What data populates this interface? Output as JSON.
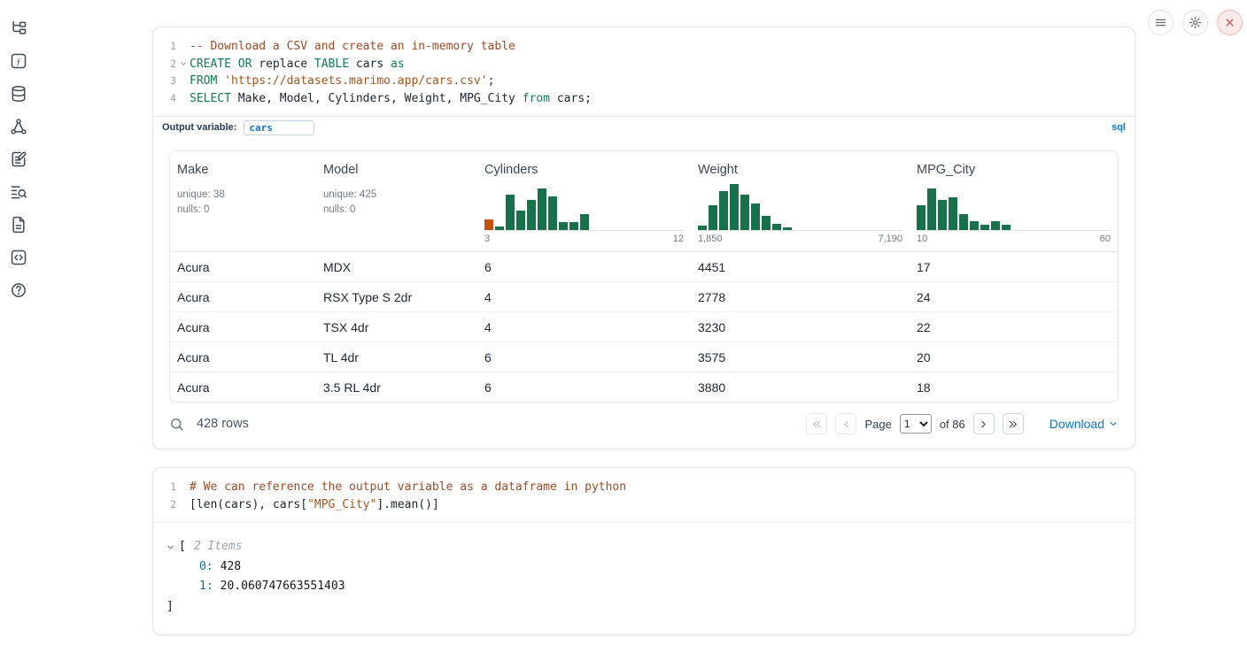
{
  "theme": {
    "accent_blue": "#0b74cf",
    "hist_green": "#17714a",
    "hist_orange": "#c4520e",
    "close_red": "#d25050"
  },
  "sidebar": {
    "icons": [
      {
        "name": "file-tree-icon"
      },
      {
        "name": "variables-icon"
      },
      {
        "name": "data-sources-icon"
      },
      {
        "name": "dependency-graph-icon"
      },
      {
        "name": "scratchpad-icon"
      },
      {
        "name": "logs-icon"
      },
      {
        "name": "documentation-icon"
      },
      {
        "name": "snippets-icon"
      },
      {
        "name": "help-icon"
      }
    ]
  },
  "topbar": {
    "buttons": [
      {
        "name": "menu-button",
        "icon": "menu",
        "style": ""
      },
      {
        "name": "settings-button",
        "icon": "gear",
        "style": ""
      },
      {
        "name": "shutdown-button",
        "icon": "close",
        "style": "red"
      }
    ]
  },
  "sql_cell": {
    "language_badge": "sql",
    "output_variable_label": "Output variable:",
    "output_variable_value": "cars",
    "code": [
      {
        "n": "1",
        "fold": false,
        "tokens": [
          [
            "-- Download a CSV and create an in-memory table",
            "comment"
          ]
        ]
      },
      {
        "n": "2",
        "fold": true,
        "tokens": [
          [
            "CREATE",
            "keyword"
          ],
          [
            " ",
            "plain"
          ],
          [
            "OR",
            "keyword"
          ],
          [
            " replace ",
            "plain"
          ],
          [
            "TABLE",
            "keyword"
          ],
          [
            " cars ",
            "plain"
          ],
          [
            "as",
            "keyword"
          ]
        ]
      },
      {
        "n": "3",
        "fold": false,
        "tokens": [
          [
            "FROM",
            "keyword"
          ],
          [
            " ",
            "plain"
          ],
          [
            "'https://datasets.marimo.app/cars.csv'",
            "string"
          ],
          [
            ";",
            "plain"
          ]
        ]
      },
      {
        "n": "4",
        "fold": false,
        "tokens": [
          [
            "SELECT",
            "keyword"
          ],
          [
            " Make, Model, Cylinders, Weight, MPG_City ",
            "plain"
          ],
          [
            "from",
            "keyword"
          ],
          [
            " cars;",
            "plain"
          ]
        ]
      }
    ],
    "table": {
      "columns": [
        {
          "label": "Make",
          "stats": [
            "unique: 38",
            "nulls: 0"
          ]
        },
        {
          "label": "Model",
          "stats": [
            "unique: 425",
            "nulls: 0"
          ]
        },
        {
          "label": "Cylinders",
          "histogram": {
            "values": [
              12,
              4,
              40,
              22,
              34,
              47,
              38,
              9,
              9,
              18
            ],
            "highlight_index": 0,
            "min_label": "3",
            "max_label": "12"
          }
        },
        {
          "label": "Weight",
          "histogram": {
            "values": [
              5,
              28,
              44,
              52,
              40,
              30,
              16,
              7,
              3
            ],
            "highlight_index": -1,
            "min_label": "1,850",
            "max_label": "7,190"
          }
        },
        {
          "label": "MPG_City",
          "histogram": {
            "values": [
              28,
              47,
              34,
              37,
              18,
              10,
              6,
              10,
              6
            ],
            "highlight_index": -1,
            "min_label": "10",
            "max_label": "60"
          }
        }
      ],
      "rows": [
        [
          "Acura",
          "MDX",
          "6",
          "4451",
          "17"
        ],
        [
          "Acura",
          "RSX Type S 2dr",
          "4",
          "2778",
          "24"
        ],
        [
          "Acura",
          "TSX 4dr",
          "4",
          "3230",
          "22"
        ],
        [
          "Acura",
          "TL 4dr",
          "6",
          "3575",
          "20"
        ],
        [
          "Acura",
          "3.5 RL 4dr",
          "6",
          "3880",
          "18"
        ]
      ],
      "footer": {
        "row_count": "428 rows",
        "page_label": "Page",
        "page_value": "1",
        "page_total": "of 86",
        "download_label": "Download"
      }
    }
  },
  "python_cell": {
    "code": [
      {
        "n": "1",
        "fold": false,
        "tokens": [
          [
            "# We can reference the output variable as a dataframe in python",
            "comment"
          ]
        ]
      },
      {
        "n": "2",
        "fold": false,
        "tokens": [
          [
            "[len(cars), cars[",
            "plain"
          ],
          [
            "\"MPG_City\"",
            "string"
          ],
          [
            "].mean()]",
            "plain"
          ]
        ]
      }
    ],
    "output": {
      "open_bracket": "[",
      "items_label": "2 Items",
      "entries": [
        {
          "key": "0:",
          "value": "428"
        },
        {
          "key": "1:",
          "value": "20.060747663551403"
        }
      ],
      "close_bracket": "]"
    }
  }
}
